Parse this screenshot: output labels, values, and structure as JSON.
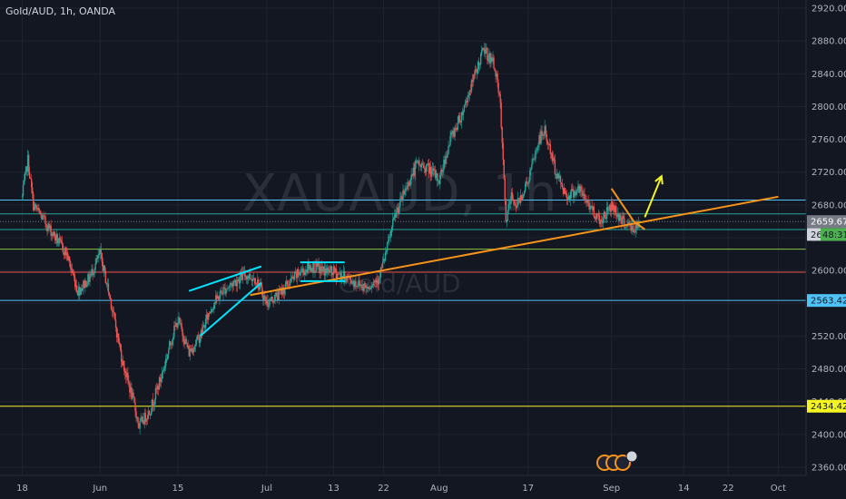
{
  "header": {
    "title": "Gold/AUD, 1h, OANDA"
  },
  "watermark": {
    "main": "XAUAUD, 1h",
    "sub": "Gold/AUD"
  },
  "colors": {
    "background": "#131722",
    "grid": "#1f2330",
    "candle_up": "#26a69a",
    "candle_down": "#ef5350",
    "trendline": "#f7931a",
    "channel": "#00e5ff",
    "arrow": "#f5f522"
  },
  "countdown": "48:31",
  "chart_data": {
    "type": "candlestick",
    "symbol": "XAUAUD",
    "timeframe": "1h",
    "grid": true,
    "ylim": [
      2350,
      2930
    ],
    "y_ticks": [
      2360,
      2400,
      2440,
      2480,
      2520,
      2560,
      2600,
      2640,
      2680,
      2720,
      2760,
      2800,
      2840,
      2880,
      2920
    ],
    "x_ticks": [
      {
        "label": "18",
        "date": "2024-05-18"
      },
      {
        "label": "Jun",
        "date": "2024-06-01"
      },
      {
        "label": "15",
        "date": "2024-06-15"
      },
      {
        "label": "Jul",
        "date": "2024-07-01"
      },
      {
        "label": "13",
        "date": "2024-07-13"
      },
      {
        "label": "22",
        "date": "2024-07-22"
      },
      {
        "label": "Aug",
        "date": "2024-08-01"
      },
      {
        "label": "17",
        "date": "2024-08-17"
      },
      {
        "label": "Sep",
        "date": "2024-09-01"
      },
      {
        "label": "14",
        "date": "2024-09-14"
      },
      {
        "label": "22",
        "date": "2024-09-22"
      },
      {
        "label": "Oct",
        "date": "2024-10-01"
      }
    ],
    "price_path": [
      [
        "2024-05-18",
        2690
      ],
      [
        "2024-05-19",
        2735
      ],
      [
        "2024-05-20",
        2680
      ],
      [
        "2024-05-22",
        2660
      ],
      [
        "2024-05-24",
        2640
      ],
      [
        "2024-05-26",
        2620
      ],
      [
        "2024-05-28",
        2575
      ],
      [
        "2024-05-30",
        2590
      ],
      [
        "2024-06-01",
        2620
      ],
      [
        "2024-06-03",
        2560
      ],
      [
        "2024-06-05",
        2490
      ],
      [
        "2024-06-07",
        2440
      ],
      [
        "2024-06-08",
        2410
      ],
      [
        "2024-06-10",
        2430
      ],
      [
        "2024-06-12",
        2470
      ],
      [
        "2024-06-14",
        2520
      ],
      [
        "2024-06-15",
        2540
      ],
      [
        "2024-06-17",
        2500
      ],
      [
        "2024-06-19",
        2520
      ],
      [
        "2024-06-21",
        2555
      ],
      [
        "2024-06-23",
        2575
      ],
      [
        "2024-06-25",
        2585
      ],
      [
        "2024-06-27",
        2595
      ],
      [
        "2024-06-29",
        2590
      ],
      [
        "2024-07-01",
        2560
      ],
      [
        "2024-07-03",
        2570
      ],
      [
        "2024-07-05",
        2585
      ],
      [
        "2024-07-07",
        2598
      ],
      [
        "2024-07-09",
        2605
      ],
      [
        "2024-07-11",
        2600
      ],
      [
        "2024-07-13",
        2598
      ],
      [
        "2024-07-15",
        2592
      ],
      [
        "2024-07-17",
        2585
      ],
      [
        "2024-07-19",
        2580
      ],
      [
        "2024-07-21",
        2590
      ],
      [
        "2024-07-22",
        2610
      ],
      [
        "2024-07-24",
        2665
      ],
      [
        "2024-07-26",
        2700
      ],
      [
        "2024-07-28",
        2730
      ],
      [
        "2024-07-30",
        2725
      ],
      [
        "2024-08-01",
        2710
      ],
      [
        "2024-08-03",
        2760
      ],
      [
        "2024-08-05",
        2790
      ],
      [
        "2024-08-07",
        2830
      ],
      [
        "2024-08-09",
        2870
      ],
      [
        "2024-08-11",
        2850
      ],
      [
        "2024-08-12",
        2800
      ],
      [
        "2024-08-13",
        2660
      ],
      [
        "2024-08-14",
        2690
      ],
      [
        "2024-08-15",
        2680
      ],
      [
        "2024-08-17",
        2710
      ],
      [
        "2024-08-19",
        2760
      ],
      [
        "2024-08-20",
        2770
      ],
      [
        "2024-08-22",
        2720
      ],
      [
        "2024-08-24",
        2690
      ],
      [
        "2024-08-26",
        2700
      ],
      [
        "2024-08-28",
        2680
      ],
      [
        "2024-08-30",
        2660
      ],
      [
        "2024-09-01",
        2680
      ],
      [
        "2024-09-03",
        2660
      ],
      [
        "2024-09-05",
        2650
      ],
      [
        "2024-09-06",
        2655
      ]
    ],
    "horizontal_levels": [
      {
        "price": 2686,
        "color": "#4fc3f7"
      },
      {
        "price": 2669,
        "color": "#26a69a"
      },
      {
        "price": 2659.675,
        "color": "#787b86",
        "style": "dotted"
      },
      {
        "price": 2650,
        "color": "#26a69a"
      },
      {
        "price": 2626,
        "color": "#8bc34a"
      },
      {
        "price": 2598,
        "color": "#ef5350"
      },
      {
        "price": 2563.424,
        "color": "#4fc3f7"
      },
      {
        "price": 2434.428,
        "color": "#f5f522"
      }
    ],
    "price_labels": [
      {
        "text": "2659.675",
        "price": 2659.675,
        "bg": "#787b86",
        "fg": "#ffffff"
      },
      {
        "text": "26",
        "price": 2644,
        "bg": "#d1d4dc",
        "fg": "#131722"
      },
      {
        "text": "2563.424",
        "price": 2563.424,
        "bg": "#4fc3f7",
        "fg": "#131722"
      },
      {
        "text": "2434.428",
        "price": 2434.428,
        "bg": "#f5f522",
        "fg": "#131722"
      }
    ],
    "drawings": [
      {
        "type": "trendline",
        "color": "#f7931a",
        "from": [
          "2024-06-28",
          2570
        ],
        "to": [
          "2024-10-01",
          2690
        ]
      },
      {
        "type": "channel",
        "color": "#00e5ff",
        "lines": [
          [
            [
              "2024-06-17",
              2575
            ],
            [
              "2024-06-30",
              2605
            ]
          ],
          [
            [
              "2024-06-19",
              2520
            ],
            [
              "2024-06-30",
              2585
            ]
          ]
        ]
      },
      {
        "type": "range",
        "color": "#00e5ff",
        "lines": [
          [
            [
              "2024-07-07",
              2610
            ],
            [
              "2024-07-15",
              2610
            ]
          ],
          [
            [
              "2024-07-07",
              2587
            ],
            [
              "2024-07-15",
              2587
            ]
          ]
        ]
      },
      {
        "type": "pattern",
        "color": "#f7931a",
        "points": [
          [
            "2024-09-01",
            2700
          ],
          [
            "2024-09-05",
            2660
          ],
          [
            "2024-09-07",
            2650
          ]
        ]
      },
      {
        "type": "arrow",
        "color": "#f5f522",
        "points": [
          [
            "2024-09-07",
            2665
          ],
          [
            "2024-09-10",
            2715
          ]
        ]
      }
    ]
  }
}
